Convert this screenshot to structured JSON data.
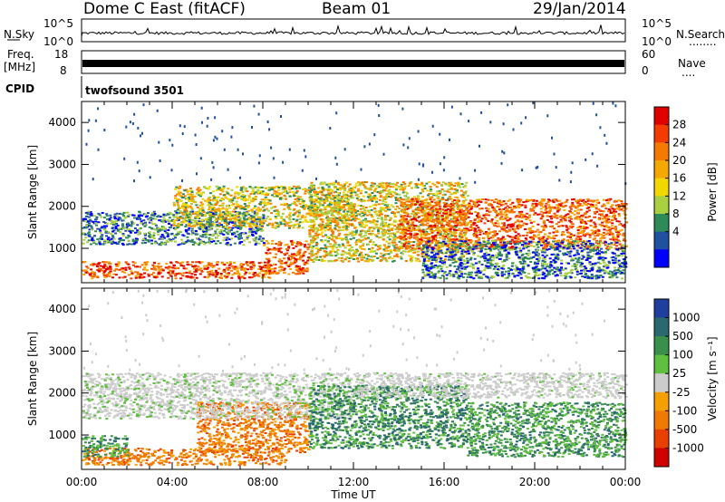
{
  "header": {
    "station": "Dome C East (fitACF)",
    "beam": "Beam 01",
    "date": "29/Jan/2014"
  },
  "strips": {
    "nsky": {
      "label": "N.Sky",
      "ticks": [
        "10^5",
        "10^0"
      ],
      "right_label": "N.Search",
      "right_ticks": [
        "10^5",
        "10^0"
      ],
      "right_marker": "........",
      "color": "#000000"
    },
    "freq": {
      "label_line1": "Freq.",
      "label_line2": "[MHz]",
      "ticks": [
        "18",
        "8"
      ],
      "right_label": "Nave",
      "right_ticks": [
        "60",
        "0"
      ],
      "right_marker": "....",
      "color": "#000000"
    },
    "cpid": {
      "label": "CPID",
      "program": "twofsound 3501"
    }
  },
  "colorbars": {
    "power": {
      "title": "Power [dB]",
      "tick_labels": [
        "28",
        "24",
        "20",
        "16",
        "12",
        "8",
        "4"
      ],
      "colors": [
        "#e00000",
        "#f53c00",
        "#f77a00",
        "#f5a800",
        "#f0d800",
        "#a8d040",
        "#2e8b57",
        "#2050a0",
        "#0000ff"
      ]
    },
    "velocity": {
      "title": "Velocity [m s⁻¹]",
      "tick_labels": [
        "1000",
        "500",
        "100",
        "25",
        "-25",
        "-100",
        "-500",
        "-1000"
      ],
      "colors": [
        "#1f3f9f",
        "#2a6a6f",
        "#3a8f4a",
        "#5fbf3f",
        "#cccccc",
        "#f5a000",
        "#f07a00",
        "#e84000",
        "#d00000"
      ]
    }
  },
  "chart_data": [
    {
      "type": "heatmap",
      "name": "power",
      "ylabel": "Slant Range [km]",
      "xlabel": "Time UT",
      "x_ticks": [
        "00:00",
        "04:00",
        "08:00",
        "12:00",
        "16:00",
        "20:00",
        "00:00"
      ],
      "xlim_hours": [
        0,
        24
      ],
      "y_ticks": [
        1000,
        2000,
        3000,
        4000
      ],
      "ylim": [
        180,
        4500
      ],
      "echo_regions_range_km": [
        {
          "t0": 0,
          "t1": 8.5,
          "r0": 300,
          "r1": 700,
          "level": "high"
        },
        {
          "t0": 8,
          "t1": 10,
          "r0": 400,
          "r1": 1200,
          "level": "high"
        },
        {
          "t0": 0,
          "t1": 8,
          "r0": 1100,
          "r1": 1900,
          "level": "low"
        },
        {
          "t0": 4,
          "t1": 12,
          "r0": 1500,
          "r1": 2500,
          "level": "mid"
        },
        {
          "t0": 10,
          "t1": 17,
          "r0": 700,
          "r1": 2600,
          "level": "mid"
        },
        {
          "t0": 14,
          "t1": 24,
          "r0": 1000,
          "r1": 2200,
          "level": "high"
        },
        {
          "t0": 15,
          "t1": 24,
          "r0": 300,
          "r1": 1200,
          "level": "low"
        }
      ]
    },
    {
      "type": "heatmap",
      "name": "velocity",
      "ylabel": "Slant Range [km]",
      "xlabel": "Time UT",
      "x_ticks": [
        "00:00",
        "04:00",
        "08:00",
        "12:00",
        "16:00",
        "20:00",
        "00:00"
      ],
      "xlim_hours": [
        0,
        24
      ],
      "y_ticks": [
        1000,
        2000,
        3000,
        4000
      ],
      "ylim": [
        180,
        4500
      ],
      "echo_regions_range_km": [
        {
          "t0": 0,
          "t1": 9,
          "r0": 300,
          "r1": 700,
          "sign": "negative"
        },
        {
          "t0": 0,
          "t1": 2,
          "r0": 500,
          "r1": 1000,
          "sign": "positive"
        },
        {
          "t0": 5,
          "t1": 10,
          "r0": 600,
          "r1": 1800,
          "sign": "negative"
        },
        {
          "t0": 0,
          "t1": 12,
          "r0": 1400,
          "r1": 2500,
          "sign": "zero"
        },
        {
          "t0": 10,
          "t1": 17,
          "r0": 700,
          "r1": 2200,
          "sign": "positive"
        },
        {
          "t0": 12,
          "t1": 24,
          "r0": 1900,
          "r1": 2500,
          "sign": "zero"
        },
        {
          "t0": 17,
          "t1": 24,
          "r0": 500,
          "r1": 1800,
          "sign": "positive"
        }
      ]
    }
  ]
}
